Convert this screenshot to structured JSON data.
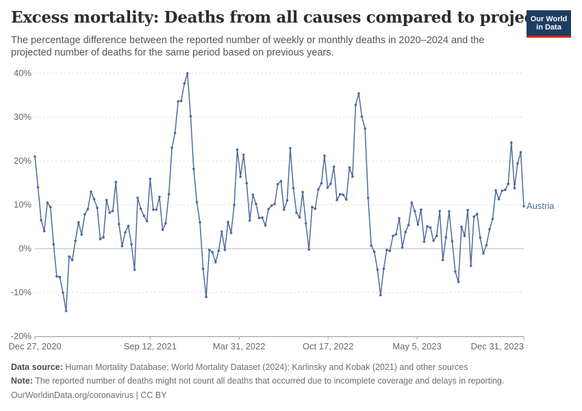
{
  "header": {
    "title": "Excess mortality: Deaths from all causes compared to projection",
    "subtitle": "The percentage difference between the reported number of weekly or monthly deaths in 2020–2024 and the projected number of deaths for the same period based on previous years.",
    "logo_line1": "Our World",
    "logo_line2": "in Data"
  },
  "footer": {
    "source_label": "Data source:",
    "source_text": "Human Mortality Database; World Mortality Dataset (2024); Karlinsky and Kobak (2021) and other sources",
    "note_label": "Note:",
    "note_text": "The reported number of deaths might not count all deaths that occurred due to incomplete coverage and delays in reporting.",
    "credit": "OurWorldinData.org/coronavirus | CC BY"
  },
  "colors": {
    "series": "#4c6a9c",
    "zero_line": "#b5b5b5",
    "grid": "#dddddd"
  },
  "chart_data": {
    "type": "line",
    "title": "Excess mortality: Deaths from all causes compared to projection",
    "ylim": [
      -20,
      40
    ],
    "yticks": [
      -20,
      -10,
      0,
      10,
      20,
      30,
      40
    ],
    "ytick_labels": [
      "-20%",
      "-10%",
      "0%",
      "10%",
      "20%",
      "30%",
      "40%"
    ],
    "y_gridlines": "dashed",
    "xtick_labels": [
      "Dec 27, 2020",
      "Sep 12, 2021",
      "Mar 31, 2022",
      "Oct 17, 2022",
      "May 5, 2023",
      "Dec 31, 2023"
    ],
    "xticks": [
      "2020-12-27",
      "2021-09-12",
      "2022-03-31",
      "2022-10-17",
      "2023-05-05",
      "2023-12-31"
    ],
    "x_start": "2020-12-27",
    "x_end": "2023-12-31",
    "frequency": "weekly",
    "legend": "inline label at line end",
    "series": [
      {
        "name": "Austria",
        "values": [
          21,
          14,
          6.5,
          4,
          10.5,
          9.5,
          1,
          -6.3,
          -6.5,
          -10,
          -14.2,
          -1.8,
          -2.6,
          1.8,
          6,
          3.2,
          7.8,
          9,
          13,
          11.3,
          9.3,
          2.2,
          2.6,
          11.1,
          8.2,
          8.6,
          15.2,
          5.6,
          0.6,
          3.7,
          5.2,
          1,
          -4.8,
          11.6,
          9.1,
          7.5,
          6.3,
          15.9,
          8.9,
          8.9,
          11.8,
          4.3,
          5.8,
          12.4,
          23,
          26.4,
          33.6,
          33.7,
          37.7,
          40,
          30.2,
          18.2,
          10.6,
          6,
          -4.6,
          -11,
          -0.3,
          -0.8,
          -3.1,
          -0.5,
          3.9,
          -0.3,
          6.1,
          3.6,
          10,
          22.6,
          16.4,
          21.4,
          14.9,
          6.4,
          12.3,
          10.2,
          7,
          7.1,
          5.3,
          9,
          9.8,
          10.2,
          14.7,
          15.4,
          8.9,
          11,
          22.9,
          13.8,
          8.2,
          7.1,
          12.9,
          5.8,
          -0.2,
          9.5,
          9.1,
          13.5,
          14.9,
          21.2,
          13.9,
          14.8,
          18.7,
          11.1,
          12.4,
          12.3,
          11.2,
          18.5,
          16.4,
          32.8,
          35.4,
          30.1,
          27.4,
          11.6,
          0.7,
          -0.7,
          -4.8,
          -10.6,
          -4.6,
          -0.3,
          -0.5,
          2.9,
          3.3,
          6.9,
          0.3,
          3.8,
          5.4,
          10.5,
          8.6,
          5.5,
          8.9,
          1.6,
          5.1,
          4.8,
          1.8,
          2.9,
          8.6,
          -2.6,
          2.6,
          8.5,
          1.7,
          -5.2,
          -7.6,
          5,
          2.9,
          8.8,
          -3.9,
          7.3,
          7.9,
          2.5,
          -1.1,
          0.8,
          4.4,
          6.8,
          13.3,
          11.3,
          13.2,
          13.4,
          14.8,
          24.2,
          13.8,
          19.4,
          22,
          9.7
        ]
      }
    ]
  }
}
